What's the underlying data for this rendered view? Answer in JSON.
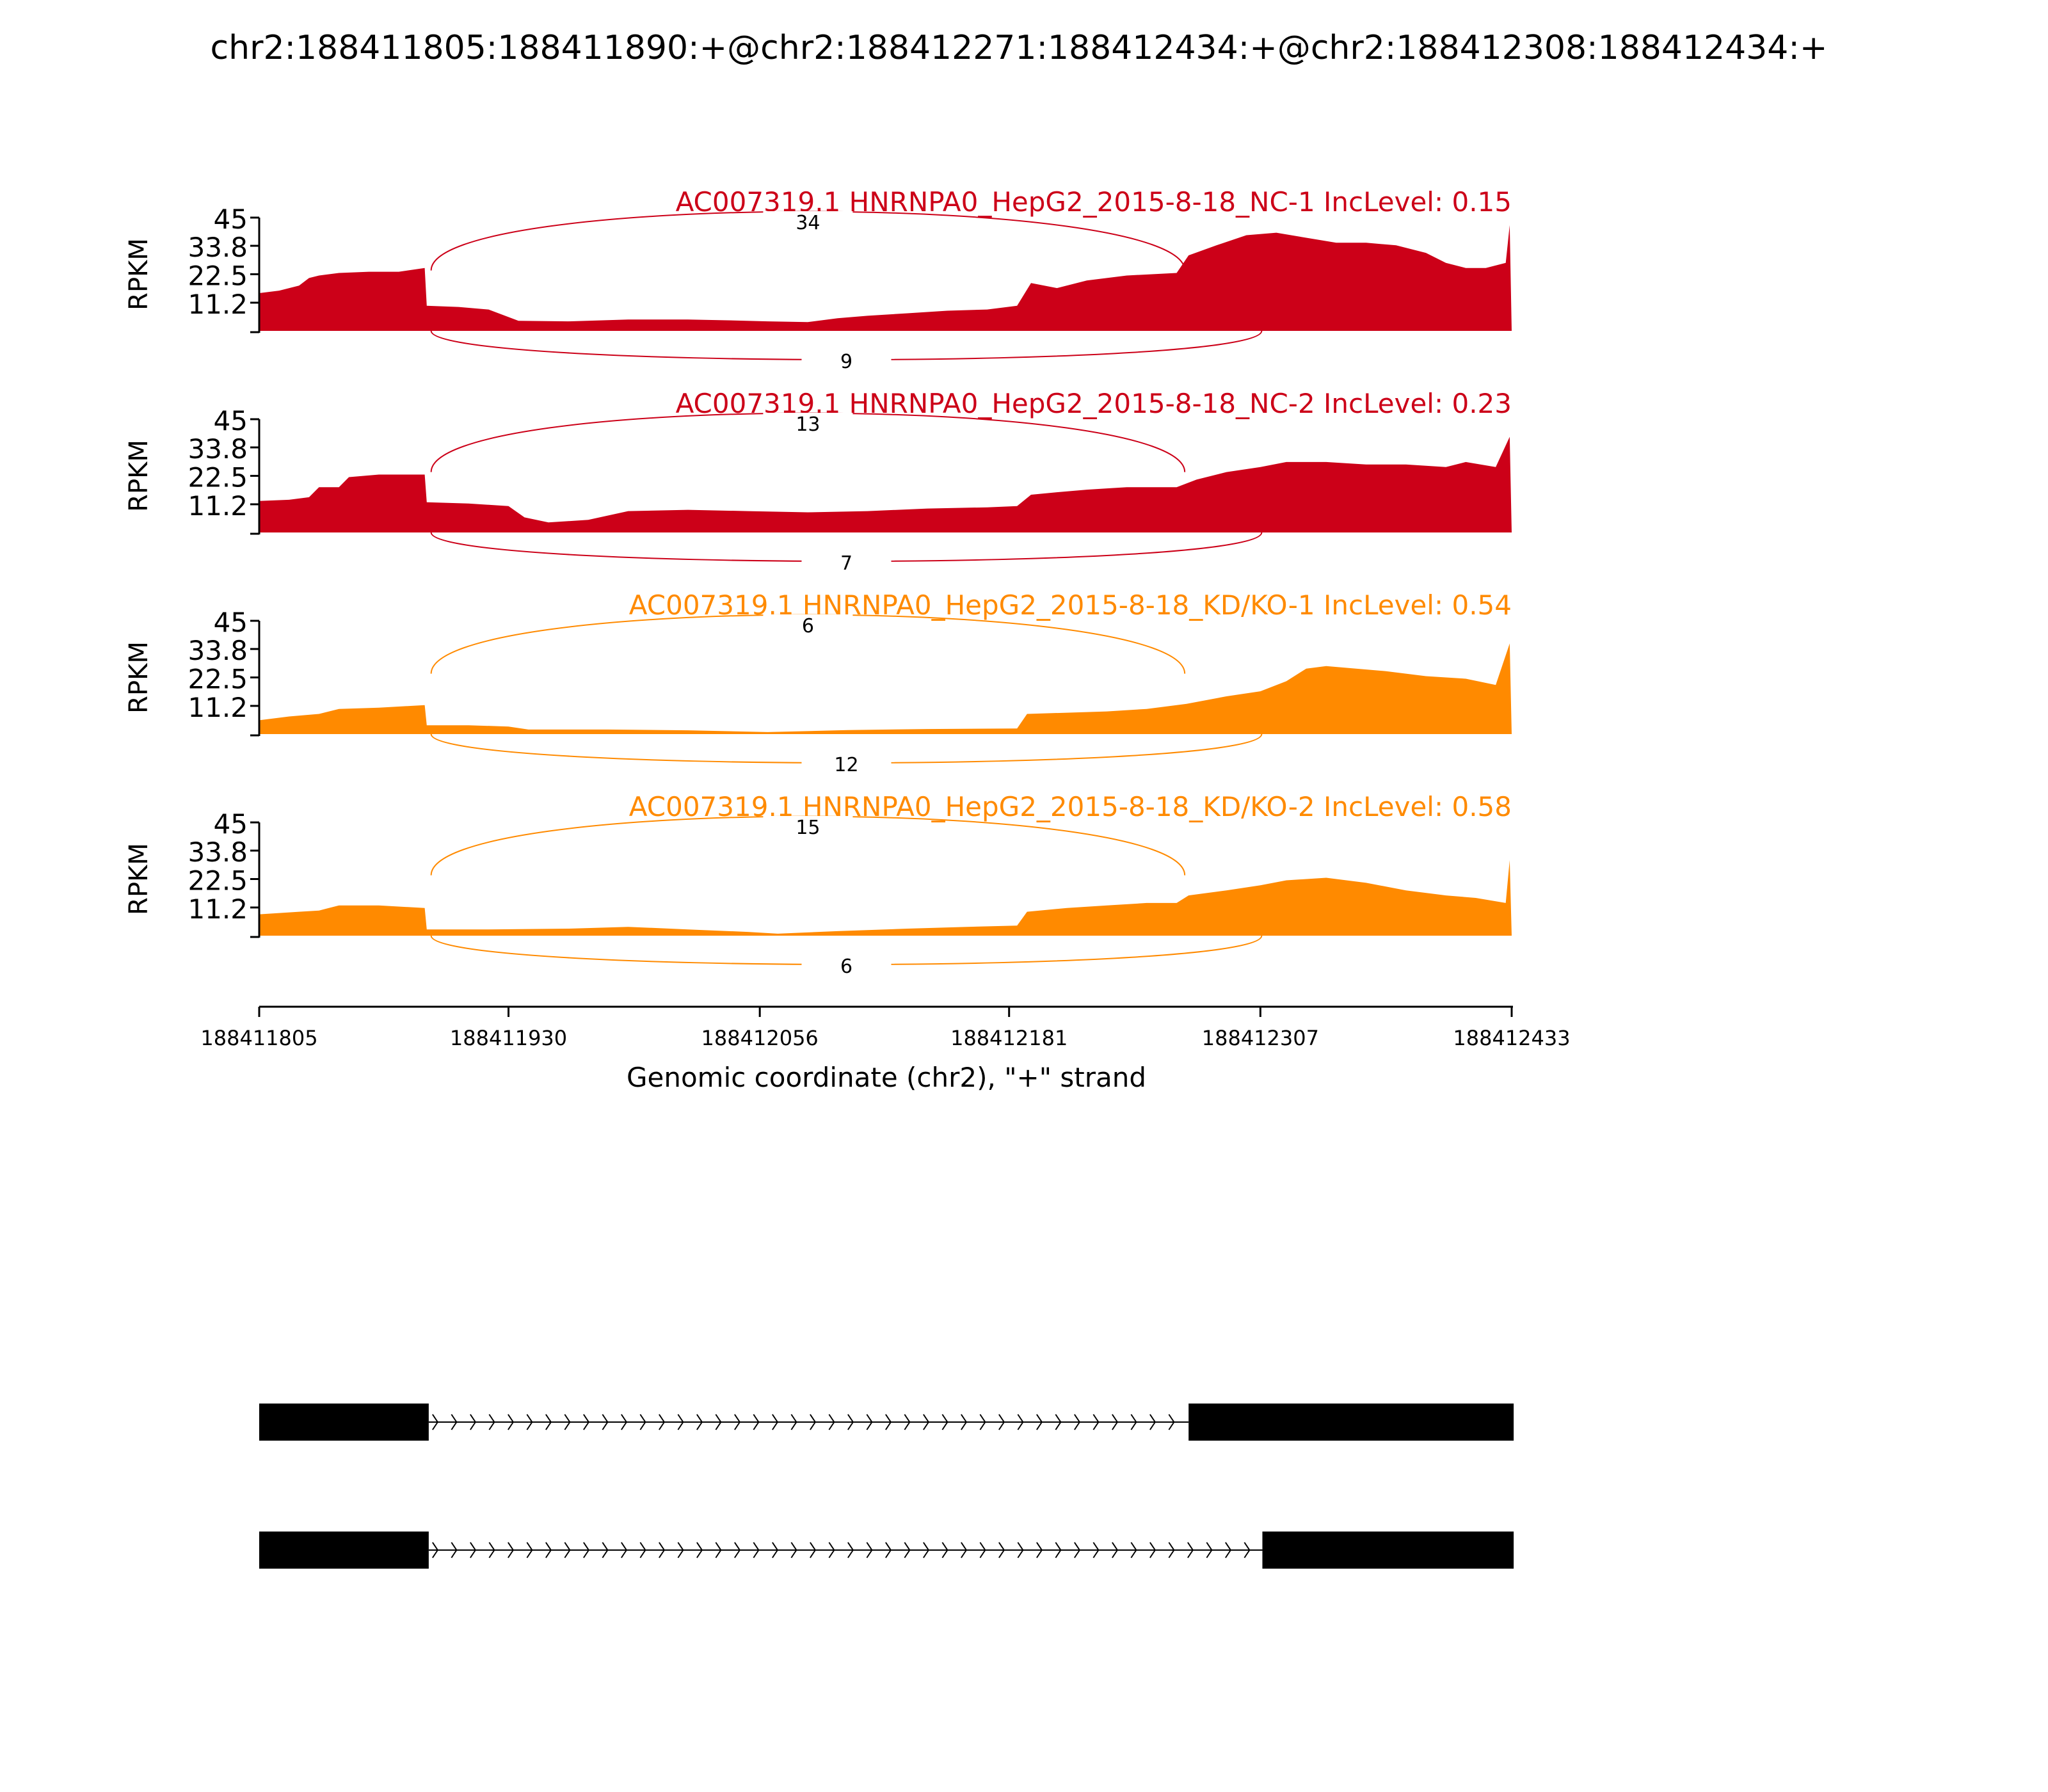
{
  "title": "chr2:188411805:188411890:+@chr2:188412271:188412434:+@chr2:188412308:188412434:+",
  "colors": {
    "NC": "#cc0018",
    "KD": "#ff8a00",
    "axis": "#000000"
  },
  "chart_data": {
    "type": "area",
    "ylabel": "RPKM",
    "xlabel": "Genomic coordinate (chr2), \"+\" strand",
    "ylim": [
      0,
      45
    ],
    "xlim": [
      188411805,
      188412433
    ],
    "yticks": [
      "11.2",
      "22.5",
      "33.8",
      "45"
    ],
    "xticks": [
      188411805,
      188411930,
      188412056,
      188412181,
      188412307,
      188412433
    ],
    "exons": {
      "upstream": [
        188411805,
        188411890
      ],
      "target": [
        188412271,
        188412434
      ],
      "downstream": [
        188412308,
        188412434
      ]
    },
    "panels": [
      {
        "label": "AC007319.1 HNRNPA0_HepG2_2015-8-18_NC-1 IncLevel: 0.15",
        "color_key": "NC",
        "junction_upper": {
          "count": "34",
          "from": 188411888,
          "to": 188412271
        },
        "junction_lower": {
          "count": "9",
          "from": 188411888,
          "to": 188412307
        },
        "coverage": [
          [
            188411805,
            15
          ],
          [
            188411815,
            16
          ],
          [
            188411825,
            18
          ],
          [
            188411830,
            21
          ],
          [
            188411835,
            22
          ],
          [
            188411845,
            23
          ],
          [
            188411860,
            23.5
          ],
          [
            188411875,
            23.5
          ],
          [
            188411888,
            25
          ],
          [
            188411889,
            10
          ],
          [
            188411905,
            9.5
          ],
          [
            188411920,
            8.5
          ],
          [
            188411935,
            4
          ],
          [
            188411960,
            3.8
          ],
          [
            188411990,
            4.5
          ],
          [
            188412020,
            4.5
          ],
          [
            188412040,
            4.2
          ],
          [
            188412060,
            3.8
          ],
          [
            188412080,
            3.5
          ],
          [
            188412095,
            5
          ],
          [
            188412110,
            6
          ],
          [
            188412130,
            7
          ],
          [
            188412150,
            8
          ],
          [
            188412170,
            8.5
          ],
          [
            188412185,
            10
          ],
          [
            188412192,
            19
          ],
          [
            188412205,
            17
          ],
          [
            188412220,
            20
          ],
          [
            188412240,
            22
          ],
          [
            188412265,
            23
          ],
          [
            188412271,
            30
          ],
          [
            188412285,
            34
          ],
          [
            188412300,
            38
          ],
          [
            188412315,
            39
          ],
          [
            188412330,
            37
          ],
          [
            188412345,
            35
          ],
          [
            188412360,
            35
          ],
          [
            188412375,
            34
          ],
          [
            188412390,
            31
          ],
          [
            188412400,
            27
          ],
          [
            188412410,
            25
          ],
          [
            188412420,
            25
          ],
          [
            188412430,
            27
          ],
          [
            188412432,
            42
          ],
          [
            188412433,
            0
          ]
        ]
      },
      {
        "label": "AC007319.1 HNRNPA0_HepG2_2015-8-18_NC-2 IncLevel: 0.23",
        "color_key": "NC",
        "junction_upper": {
          "count": "13",
          "from": 188411888,
          "to": 188412271
        },
        "junction_lower": {
          "count": "7",
          "from": 188411888,
          "to": 188412307
        },
        "coverage": [
          [
            188411805,
            12.5
          ],
          [
            188411820,
            13
          ],
          [
            188411830,
            14
          ],
          [
            188411835,
            18
          ],
          [
            188411845,
            18
          ],
          [
            188411850,
            22
          ],
          [
            188411865,
            23
          ],
          [
            188411888,
            23
          ],
          [
            188411889,
            12
          ],
          [
            188411910,
            11.5
          ],
          [
            188411930,
            10.5
          ],
          [
            188411938,
            6
          ],
          [
            188411950,
            4
          ],
          [
            188411970,
            5
          ],
          [
            188411990,
            8.5
          ],
          [
            188412020,
            9
          ],
          [
            188412050,
            8.5
          ],
          [
            188412080,
            8
          ],
          [
            188412110,
            8.5
          ],
          [
            188412140,
            9.5
          ],
          [
            188412170,
            10
          ],
          [
            188412185,
            10.5
          ],
          [
            188412192,
            15
          ],
          [
            188412205,
            16
          ],
          [
            188412220,
            17
          ],
          [
            188412240,
            18
          ],
          [
            188412265,
            18
          ],
          [
            188412275,
            21
          ],
          [
            188412290,
            24
          ],
          [
            188412307,
            26
          ],
          [
            188412320,
            28
          ],
          [
            188412340,
            28
          ],
          [
            188412360,
            27
          ],
          [
            188412380,
            27
          ],
          [
            188412400,
            26
          ],
          [
            188412410,
            28
          ],
          [
            188412425,
            26
          ],
          [
            188412432,
            38
          ],
          [
            188412433,
            0
          ]
        ]
      },
      {
        "label": "AC007319.1 HNRNPA0_HepG2_2015-8-18_KD/KO-1 IncLevel: 0.54",
        "color_key": "KD",
        "junction_upper": {
          "count": "6",
          "from": 188411888,
          "to": 188412271
        },
        "junction_lower": {
          "count": "12",
          "from": 188411888,
          "to": 188412307
        },
        "coverage": [
          [
            188411805,
            5.5
          ],
          [
            188411820,
            7
          ],
          [
            188411835,
            8
          ],
          [
            188411845,
            10
          ],
          [
            188411865,
            10.5
          ],
          [
            188411888,
            11.5
          ],
          [
            188411889,
            3.5
          ],
          [
            188411910,
            3.5
          ],
          [
            188411930,
            3
          ],
          [
            188411940,
            1.8
          ],
          [
            188411980,
            1.8
          ],
          [
            188412020,
            1.5
          ],
          [
            188412060,
            0.8
          ],
          [
            188412100,
            1.6
          ],
          [
            188412140,
            2
          ],
          [
            188412185,
            2.2
          ],
          [
            188412190,
            8
          ],
          [
            188412210,
            8.5
          ],
          [
            188412230,
            9
          ],
          [
            188412250,
            10
          ],
          [
            188412270,
            12
          ],
          [
            188412290,
            15
          ],
          [
            188412307,
            17
          ],
          [
            188412320,
            21
          ],
          [
            188412330,
            26
          ],
          [
            188412340,
            27
          ],
          [
            188412355,
            26
          ],
          [
            188412370,
            25
          ],
          [
            188412390,
            23
          ],
          [
            188412410,
            22
          ],
          [
            188412425,
            19.5
          ],
          [
            188412432,
            36
          ],
          [
            188412433,
            0
          ]
        ]
      },
      {
        "label": "AC007319.1 HNRNPA0_HepG2_2015-8-18_KD/KO-2 IncLevel: 0.58",
        "color_key": "KD",
        "junction_upper": {
          "count": "15",
          "from": 188411888,
          "to": 188412271
        },
        "junction_lower": {
          "count": "6",
          "from": 188411888,
          "to": 188412307
        },
        "coverage": [
          [
            188411805,
            8.5
          ],
          [
            188411825,
            9.5
          ],
          [
            188411835,
            10
          ],
          [
            188411845,
            12
          ],
          [
            188411865,
            12
          ],
          [
            188411888,
            11
          ],
          [
            188411889,
            2.5
          ],
          [
            188411920,
            2.5
          ],
          [
            188411960,
            2.8
          ],
          [
            188411990,
            3.5
          ],
          [
            188412020,
            2.5
          ],
          [
            188412050,
            1.5
          ],
          [
            188412065,
            0.8
          ],
          [
            188412095,
            1.8
          ],
          [
            188412130,
            2.8
          ],
          [
            188412160,
            3.5
          ],
          [
            188412185,
            4
          ],
          [
            188412190,
            9.5
          ],
          [
            188412210,
            11
          ],
          [
            188412230,
            12
          ],
          [
            188412250,
            13
          ],
          [
            188412265,
            13
          ],
          [
            188412271,
            16
          ],
          [
            188412290,
            18
          ],
          [
            188412307,
            20
          ],
          [
            188412320,
            22
          ],
          [
            188412340,
            23
          ],
          [
            188412360,
            21
          ],
          [
            188412380,
            18
          ],
          [
            188412400,
            16
          ],
          [
            188412415,
            15
          ],
          [
            188412430,
            13
          ],
          [
            188412432,
            30
          ],
          [
            188412433,
            0
          ]
        ]
      }
    ],
    "isoforms": [
      {
        "exons": [
          [
            188411805,
            188411890
          ],
          [
            188412271,
            188412434
          ]
        ]
      },
      {
        "exons": [
          [
            188411805,
            188411890
          ],
          [
            188412308,
            188412434
          ]
        ]
      }
    ]
  }
}
